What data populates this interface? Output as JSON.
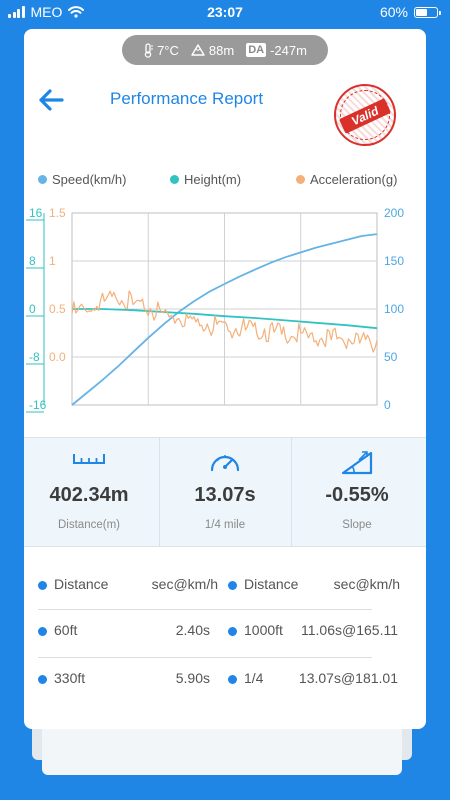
{
  "status_bar": {
    "carrier": "MEO",
    "time": "23:07",
    "battery": "60%",
    "battery_level": 0.6
  },
  "conditions": {
    "temperature": "7°C",
    "altitude": "88m",
    "da_label": "DA",
    "density_altitude": "-247m"
  },
  "header": {
    "title": "Performance Report",
    "stamp_text": "Valid"
  },
  "legend": [
    {
      "label": "Speed(km/h)",
      "color": "#66b3e6"
    },
    {
      "label": "Height(m)",
      "color": "#33c2c2"
    },
    {
      "label": "Acceleration(g)",
      "color": "#f4b07a"
    }
  ],
  "chart_data": {
    "type": "line",
    "axes": {
      "height": {
        "side": "left-outer",
        "ticks": [
          "16",
          "8",
          "0",
          "-8",
          "-16"
        ],
        "range": [
          -16,
          16
        ],
        "color": "#33c2c2"
      },
      "acceleration": {
        "side": "left-inner",
        "ticks": [
          "1.5",
          "1",
          "0.5",
          "0.0"
        ],
        "range": [
          -0.5,
          1.5
        ],
        "color": "#f4b07a"
      },
      "speed": {
        "side": "right",
        "ticks": [
          "200",
          "150",
          "100",
          "50",
          "0"
        ],
        "range": [
          0,
          200
        ],
        "color": "#4ea8e0"
      }
    },
    "grid": true,
    "series": [
      {
        "name": "Speed(km/h)",
        "axis": "speed",
        "color": "#66b3e6",
        "x": [
          0,
          0.05,
          0.1,
          0.15,
          0.2,
          0.25,
          0.3,
          0.35,
          0.4,
          0.45,
          0.5,
          0.55,
          0.6,
          0.65,
          0.7,
          0.75,
          0.8,
          0.85,
          0.9,
          0.95,
          1.0
        ],
        "values": [
          0,
          13,
          26,
          40,
          55,
          70,
          84,
          97,
          108,
          118,
          126,
          134,
          141,
          148,
          154,
          159,
          164,
          168,
          172,
          176,
          178
        ]
      },
      {
        "name": "Height(m)",
        "axis": "height",
        "color": "#33c2c2",
        "x": [
          0,
          0.1,
          0.2,
          0.3,
          0.4,
          0.5,
          0.6,
          0.7,
          0.8,
          0.9,
          1.0
        ],
        "values": [
          0,
          0,
          -0.2,
          -0.5,
          -0.8,
          -1.2,
          -1.5,
          -1.9,
          -2.3,
          -2.7,
          -3.2
        ]
      },
      {
        "name": "Acceleration(g)",
        "axis": "acceleration",
        "color": "#f4b07a",
        "x": [
          0,
          0.05,
          0.1,
          0.15,
          0.2,
          0.25,
          0.3,
          0.35,
          0.4,
          0.45,
          0.5,
          0.55,
          0.6,
          0.65,
          0.7,
          0.75,
          0.8,
          0.85,
          0.9,
          0.95,
          1.0
        ],
        "values": [
          0.45,
          0.5,
          0.55,
          0.65,
          0.55,
          0.5,
          0.45,
          0.42,
          0.38,
          0.35,
          0.33,
          0.3,
          0.28,
          0.26,
          0.25,
          0.22,
          0.2,
          0.2,
          0.18,
          0.17,
          0.15
        ]
      }
    ]
  },
  "stats": [
    {
      "icon": "distance-ruler-icon",
      "value": "402.34m",
      "label": "Distance(m)"
    },
    {
      "icon": "speedometer-icon",
      "value": "13.07s",
      "label": "1/4 mile"
    },
    {
      "icon": "slope-icon",
      "value": "-0.55%",
      "label": "Slope"
    }
  ],
  "splits": {
    "header": {
      "col1_key": "Distance",
      "col1_val": "sec@km/h",
      "col2_key": "Distance",
      "col2_val": "sec@km/h"
    },
    "rows": [
      {
        "d1": "60ft",
        "v1": "2.40s",
        "d2": "1000ft",
        "v2": "11.06s@165.11"
      },
      {
        "d1": "330ft",
        "v1": "5.90s",
        "d2": "1/4",
        "v2": "13.07s@181.01"
      }
    ]
  }
}
